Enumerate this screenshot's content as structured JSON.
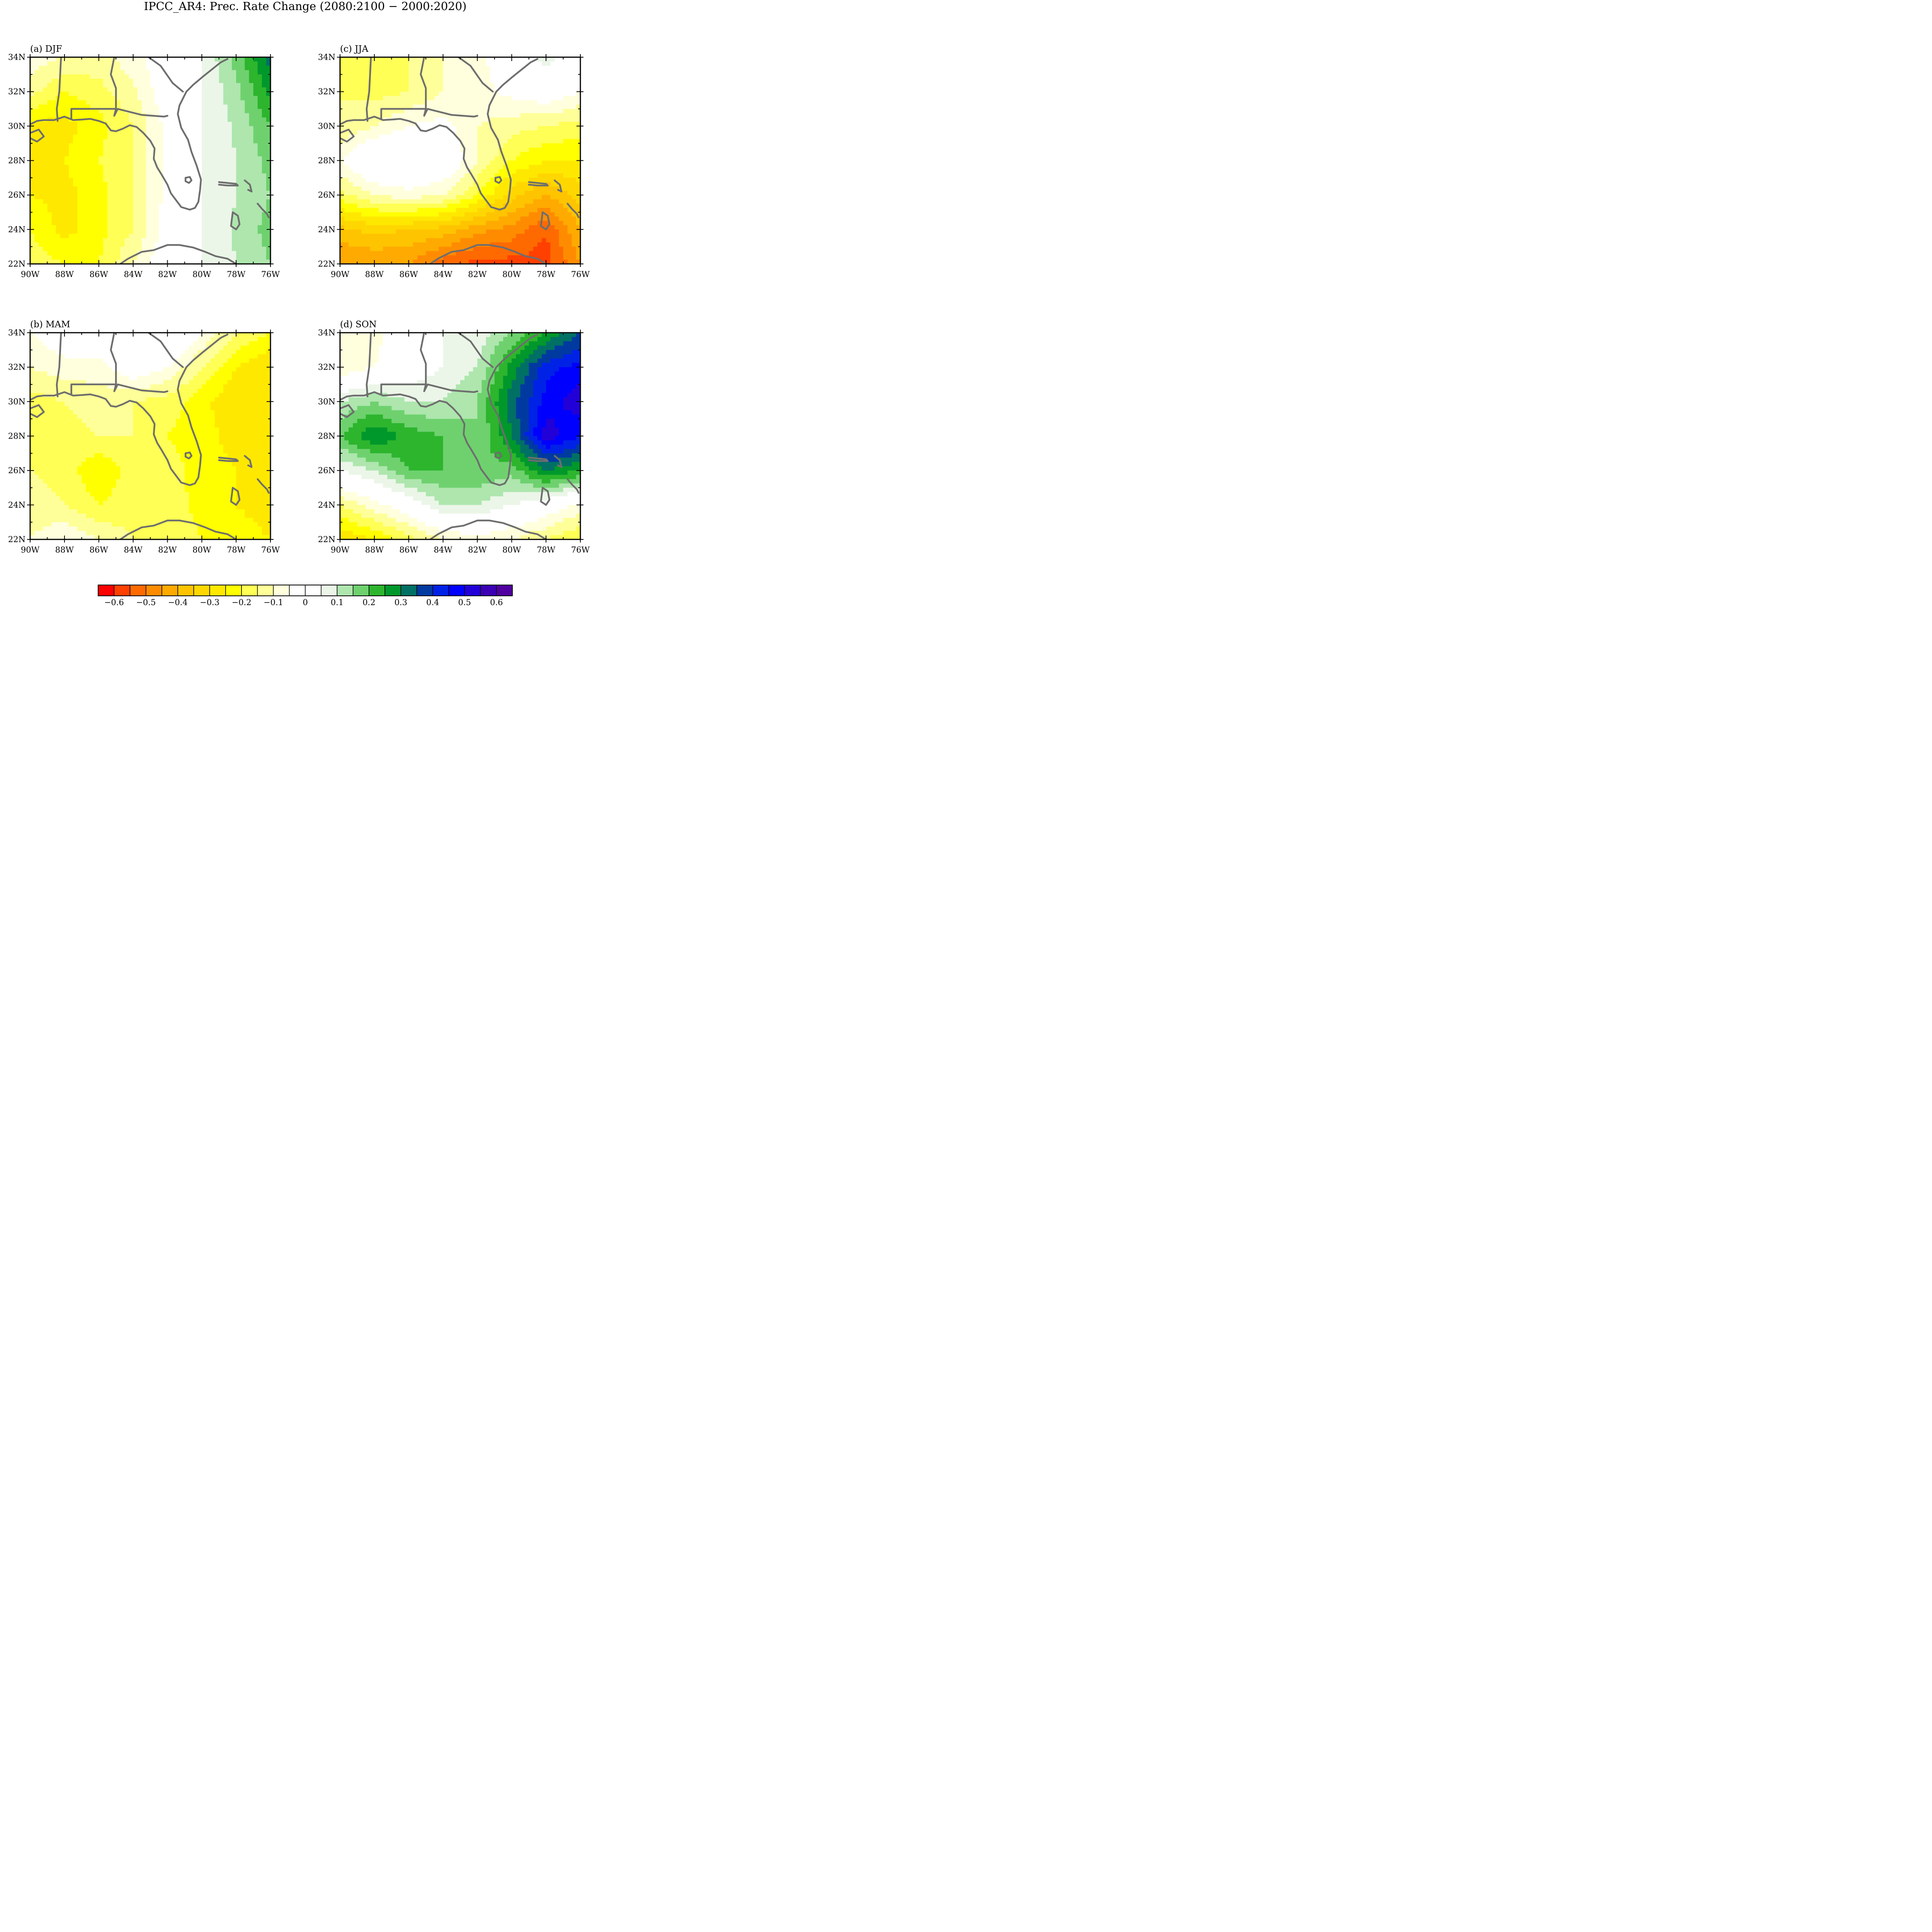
{
  "title": "IPCC_AR4: Prec. Rate Change (2080:2100 − 2000:2020)",
  "panels": [
    {
      "label": "(a) DJF",
      "season": "DJF"
    },
    {
      "label": "(c) JJA",
      "season": "JJA"
    },
    {
      "label": "(b) MAM",
      "season": "MAM"
    },
    {
      "label": "(d) SON",
      "season": "SON"
    }
  ],
  "axes": {
    "lat_ticks": [
      "34N",
      "32N",
      "30N",
      "28N",
      "26N",
      "24N",
      "22N"
    ],
    "lon_ticks": [
      "90W",
      "88W",
      "86W",
      "84W",
      "82W",
      "80W",
      "78W",
      "76W"
    ],
    "lat_range": [
      22,
      34
    ],
    "lon_range": [
      -90,
      -76
    ]
  },
  "colorbar": {
    "labels": [
      "−0.6",
      "−0.5",
      "−0.4",
      "−0.3",
      "−0.2",
      "−0.1",
      "0",
      "0.1",
      "0.2",
      "0.3",
      "0.4",
      "0.5",
      "0.6"
    ],
    "colors": [
      "#ff0000",
      "#ff4000",
      "#ff6a00",
      "#ff8c00",
      "#ffaa00",
      "#ffc400",
      "#ffd700",
      "#ffe800",
      "#ffff00",
      "#ffff55",
      "#ffff99",
      "#ffffdd",
      "#ffffff",
      "#ffffff",
      "#ebf6e8",
      "#aee6ae",
      "#6ed16e",
      "#2db52d",
      "#00982b",
      "#007064",
      "#003aa0",
      "#0022e6",
      "#0000ff",
      "#2200d8",
      "#3b00b4",
      "#5000a0"
    ]
  },
  "chart_data": {
    "type": "heatmap",
    "title": "IPCC_AR4: Prec. Rate Change (2080:2100 − 2000:2020)",
    "lon": [
      -90,
      -88,
      -86,
      -84,
      -82,
      -80,
      -78,
      -76
    ],
    "lat": [
      34,
      32,
      30,
      28,
      26,
      24,
      22
    ],
    "levels": [
      -0.65,
      -0.6,
      -0.55,
      -0.5,
      -0.45,
      -0.4,
      -0.35,
      -0.3,
      -0.25,
      -0.2,
      -0.15,
      -0.1,
      -0.05,
      0,
      0.05,
      0.1,
      0.15,
      0.2,
      0.25,
      0.3,
      0.35,
      0.4,
      0.45,
      0.5,
      0.55,
      0.6
    ],
    "panels": [
      {
        "season": "DJF",
        "values": [
          [
            -0.12,
            -0.15,
            -0.17,
            -0.12,
            -0.05,
            0.0,
            0.12,
            0.27
          ],
          [
            -0.18,
            -0.25,
            -0.22,
            -0.16,
            -0.06,
            0.0,
            0.08,
            0.22
          ],
          [
            -0.32,
            -0.32,
            -0.27,
            -0.2,
            -0.08,
            0.0,
            0.06,
            0.15
          ],
          [
            -0.3,
            -0.3,
            -0.25,
            -0.2,
            -0.08,
            0.0,
            0.05,
            0.12
          ],
          [
            -0.3,
            -0.32,
            -0.27,
            -0.2,
            -0.08,
            0.0,
            0.05,
            0.1
          ],
          [
            -0.25,
            -0.32,
            -0.27,
            -0.2,
            -0.07,
            0.0,
            0.06,
            0.12
          ],
          [
            -0.22,
            -0.25,
            -0.25,
            -0.15,
            -0.05,
            0.0,
            0.05,
            0.1
          ]
        ]
      },
      {
        "season": "JJA",
        "values": [
          [
            -0.2,
            -0.22,
            -0.2,
            -0.15,
            -0.12,
            -0.05,
            0.02,
            -0.05
          ],
          [
            -0.2,
            -0.22,
            -0.2,
            -0.15,
            -0.12,
            -0.08,
            -0.05,
            -0.1
          ],
          [
            -0.2,
            -0.15,
            -0.1,
            -0.08,
            -0.15,
            -0.18,
            -0.2,
            -0.22
          ],
          [
            -0.1,
            0.0,
            0.0,
            -0.02,
            -0.15,
            -0.25,
            -0.3,
            -0.3
          ],
          [
            -0.22,
            -0.15,
            -0.12,
            -0.15,
            -0.25,
            -0.38,
            -0.45,
            -0.38
          ],
          [
            -0.42,
            -0.38,
            -0.4,
            -0.42,
            -0.48,
            -0.52,
            -0.6,
            -0.45
          ],
          [
            -0.5,
            -0.5,
            -0.5,
            -0.58,
            -0.62,
            -0.62,
            -0.62,
            -0.5
          ]
        ]
      },
      {
        "season": "MAM",
        "values": [
          [
            -0.1,
            -0.05,
            -0.05,
            0.0,
            0.0,
            -0.1,
            -0.2,
            -0.25
          ],
          [
            -0.15,
            -0.12,
            -0.12,
            -0.05,
            -0.1,
            -0.2,
            -0.3,
            -0.35
          ],
          [
            -0.22,
            -0.2,
            -0.18,
            -0.2,
            -0.22,
            -0.28,
            -0.35,
            -0.32
          ],
          [
            -0.22,
            -0.22,
            -0.2,
            -0.2,
            -0.25,
            -0.28,
            -0.32,
            -0.3
          ],
          [
            -0.2,
            -0.22,
            -0.3,
            -0.22,
            -0.22,
            -0.28,
            -0.3,
            -0.35
          ],
          [
            -0.18,
            -0.2,
            -0.25,
            -0.22,
            -0.22,
            -0.27,
            -0.3,
            -0.32
          ],
          [
            -0.15,
            -0.1,
            -0.15,
            -0.2,
            -0.2,
            -0.25,
            -0.28,
            -0.3
          ]
        ]
      },
      {
        "season": "SON",
        "values": [
          [
            -0.15,
            -0.12,
            -0.05,
            0.0,
            0.02,
            0.1,
            0.2,
            0.3
          ],
          [
            -0.15,
            -0.1,
            -0.05,
            0.0,
            0.05,
            0.22,
            0.38,
            0.42
          ],
          [
            0.05,
            0.1,
            0.05,
            0.05,
            0.1,
            0.28,
            0.42,
            0.48
          ],
          [
            0.15,
            0.25,
            0.18,
            0.15,
            0.1,
            0.25,
            0.48,
            0.4
          ],
          [
            0.0,
            0.05,
            0.15,
            0.15,
            0.15,
            0.12,
            0.25,
            0.2
          ],
          [
            -0.2,
            -0.12,
            -0.05,
            0.05,
            0.05,
            0.0,
            -0.05,
            -0.12
          ],
          [
            -0.35,
            -0.3,
            -0.22,
            -0.15,
            -0.12,
            -0.15,
            -0.2,
            -0.25
          ]
        ]
      }
    ]
  }
}
